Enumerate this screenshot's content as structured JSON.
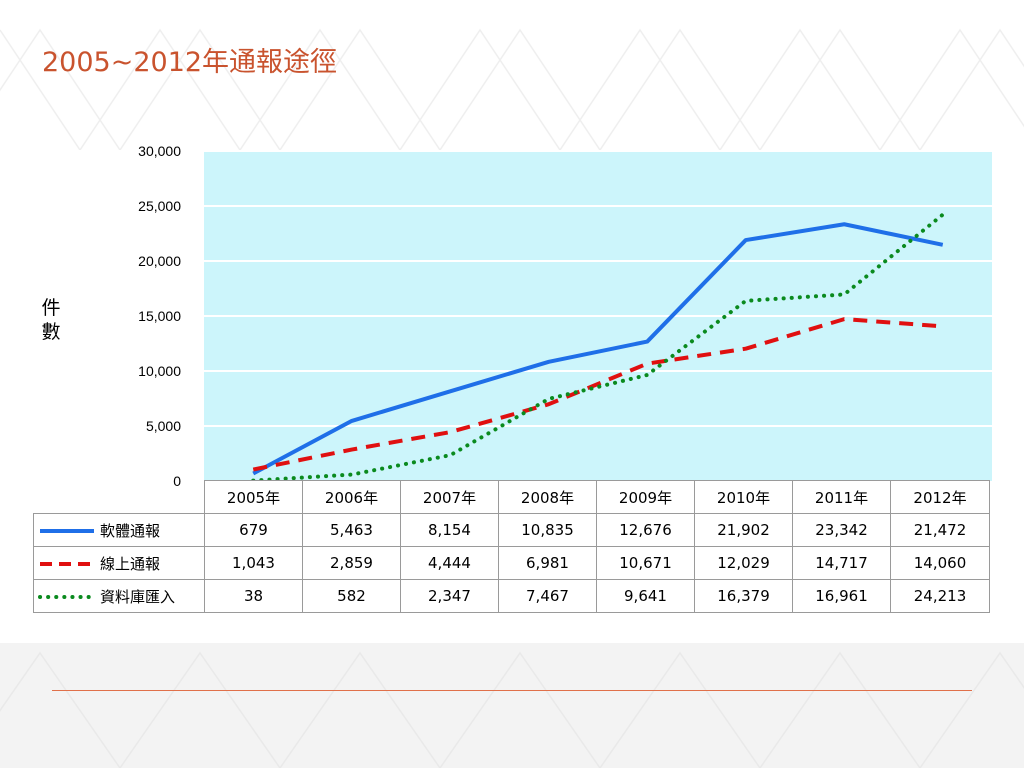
{
  "slide": {
    "title": "2005~2012年通報途徑"
  },
  "chart_data": {
    "type": "line",
    "title": "2005~2012年通報途徑",
    "ylabel": "件數",
    "xlabel": "",
    "categories": [
      "2005年",
      "2006年",
      "2007年",
      "2008年",
      "2009年",
      "2010年",
      "2011年",
      "2012年"
    ],
    "ylim": [
      0,
      30000
    ],
    "yticks": [
      0,
      5000,
      10000,
      15000,
      20000,
      25000,
      30000
    ],
    "ytick_labels": [
      "0",
      "5,000",
      "10,000",
      "15,000",
      "20,000",
      "25,000",
      "30,000"
    ],
    "grid": true,
    "plot_background": "#ccf5fb",
    "legend": "data-table",
    "series": [
      {
        "name": "軟體通報",
        "color": "#1f6fe8",
        "style": "solid",
        "values": [
          679,
          5463,
          8154,
          10835,
          12676,
          21902,
          23342,
          21472
        ],
        "labels": [
          "679",
          "5,463",
          "8,154",
          "10,835",
          "12,676",
          "21,902",
          "23,342",
          "21,472"
        ]
      },
      {
        "name": "線上通報",
        "color": "#e01010",
        "style": "dashed",
        "values": [
          1043,
          2859,
          4444,
          6981,
          10671,
          12029,
          14717,
          14060
        ],
        "labels": [
          "1,043",
          "2,859",
          "4,444",
          "6,981",
          "10,671",
          "12,029",
          "14,717",
          "14,060"
        ]
      },
      {
        "name": "資料庫匯入",
        "color": "#0a8a1e",
        "style": "dotted",
        "values": [
          38,
          582,
          2347,
          7467,
          9641,
          16379,
          16961,
          24213
        ],
        "labels": [
          "38",
          "582",
          "2,347",
          "7,467",
          "9,641",
          "16,379",
          "16,961",
          "24,213"
        ]
      }
    ]
  },
  "colors": {
    "title": "#c9532e",
    "accent_rule": "#e0704a",
    "plot_background": "#ccf5fb"
  }
}
